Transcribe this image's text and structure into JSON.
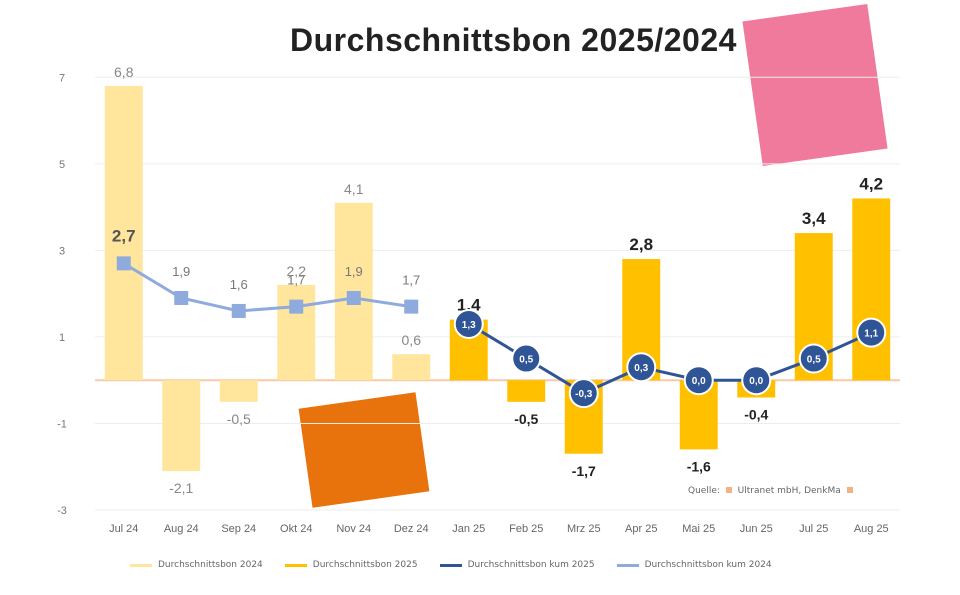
{
  "chart_data": {
    "type": "bar",
    "title": "Durchschnittsbon 2025/2024",
    "categories": [
      "Jul 24",
      "Aug 24",
      "Sep 24",
      "Okt 24",
      "Nov 24",
      "Dez 24",
      "Jan 25",
      "Feb 25",
      "Mrz 25",
      "Apr 25",
      "Mai 25",
      "Jun 25",
      "Jul 25",
      "Aug 25"
    ],
    "yticks": [
      7,
      5,
      3,
      1,
      -1,
      -3
    ],
    "ylim": [
      -3,
      7.4
    ],
    "legend_placement": "bottom",
    "series": [
      {
        "name": "Durchschnittsbon 2024",
        "type": "bar",
        "color": "#ffe69c",
        "values": [
          6.8,
          -2.1,
          -0.5,
          2.2,
          4.1,
          0.6,
          null,
          null,
          null,
          null,
          null,
          null,
          null,
          null
        ],
        "labels": [
          "6,8",
          "-2,1",
          "-0,5",
          "2,2",
          "4,1",
          "0,6",
          "",
          "",
          "",
          "",
          "",
          "",
          "",
          ""
        ]
      },
      {
        "name": "Durchschnittsbon 2025",
        "type": "bar",
        "color": "#ffc000",
        "values": [
          null,
          null,
          null,
          null,
          null,
          null,
          1.4,
          -0.5,
          -1.7,
          2.8,
          -1.6,
          -0.4,
          3.4,
          4.2
        ],
        "labels": [
          "",
          "",
          "",
          "",
          "",
          "",
          "1,4",
          "-0,5",
          "-1,7",
          "2,8",
          "-1,6",
          "-0,4",
          "3,4",
          "4,2"
        ]
      },
      {
        "name": "Durchschnittsbon kum 2025",
        "type": "line",
        "color": "#2f5597",
        "values": [
          null,
          null,
          null,
          null,
          null,
          null,
          1.3,
          0.5,
          -0.3,
          0.3,
          0.0,
          0.0,
          0.5,
          1.1
        ],
        "labels": [
          "",
          "",
          "",
          "",
          "",
          "",
          "1,3",
          "0,5",
          "-0,3",
          "0,3",
          "0,0",
          "0,0",
          "0,5",
          "1,1"
        ]
      },
      {
        "name": "Durchschnittsbon kum 2024",
        "type": "line",
        "color": "#8faadc",
        "values": [
          2.7,
          1.9,
          1.6,
          1.7,
          1.9,
          1.7,
          null,
          null,
          null,
          null,
          null,
          null,
          null,
          null
        ],
        "labels": [
          "2,7",
          "1,9",
          "1,6",
          "1,7",
          "1,9",
          "1,7",
          "",
          "",
          "",
          "",
          "",
          "",
          "",
          ""
        ]
      }
    ]
  },
  "source": {
    "prefix": "Quelle:",
    "text": "Ultranet mbH, DenkMa"
  }
}
